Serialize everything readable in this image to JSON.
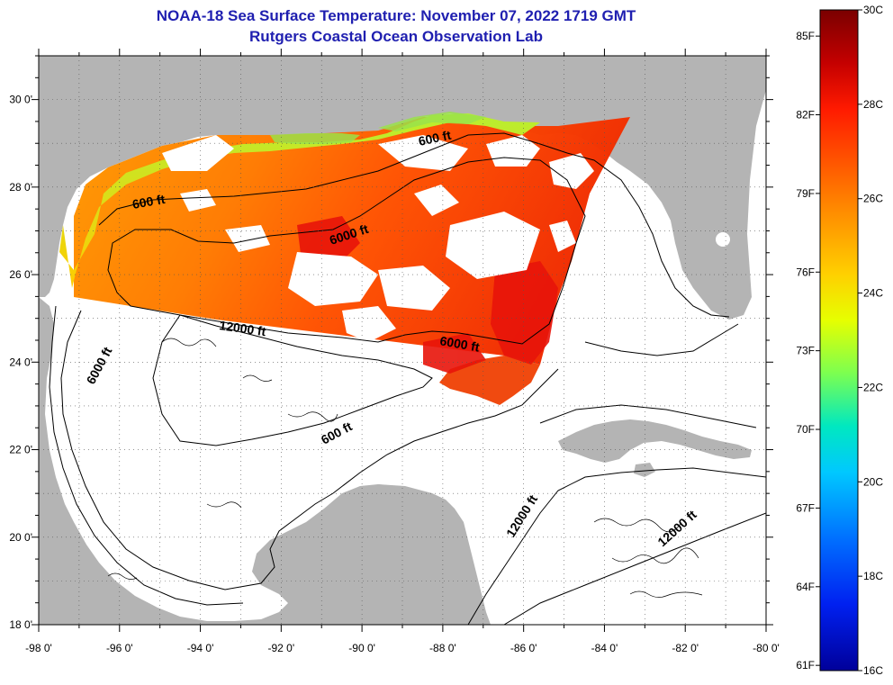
{
  "title": {
    "line1": "NOAA-18 Sea Surface Temperature:  November 07, 2022 1719 GMT",
    "line2": "Rutgers Coastal Ocean Observation Lab"
  },
  "map": {
    "lon_range": [
      -98,
      -80
    ],
    "lat_range": [
      18,
      31
    ],
    "x_ticks": [
      "-98 0'",
      "-96 0'",
      "-94 0'",
      "-92 0'",
      "-90 0'",
      "-88 0'",
      "-86 0'",
      "-84 0'",
      "-82 0'",
      "-80 0'"
    ],
    "y_ticks": [
      "30 0'",
      "28 0'",
      "26 0'",
      "24 0'",
      "22 0'",
      "20 0'",
      "18 0'"
    ],
    "contour_labels": [
      "600 ft",
      "600 ft",
      "6000 ft",
      "12000 ft",
      "6000 ft",
      "6000 ft",
      "600 ft",
      "12000 ft",
      "12000 ft"
    ]
  },
  "colorbar": {
    "f_labels": [
      "85F",
      "82F",
      "79F",
      "76F",
      "73F",
      "70F",
      "67F",
      "64F",
      "61F"
    ],
    "c_labels": [
      "30C",
      "28C",
      "26C",
      "24C",
      "22C",
      "20C",
      "18C",
      "16C"
    ]
  },
  "colors": {
    "land": "#b4b4b4",
    "cloud": "#ffffff",
    "title": "#1f1fb0"
  }
}
